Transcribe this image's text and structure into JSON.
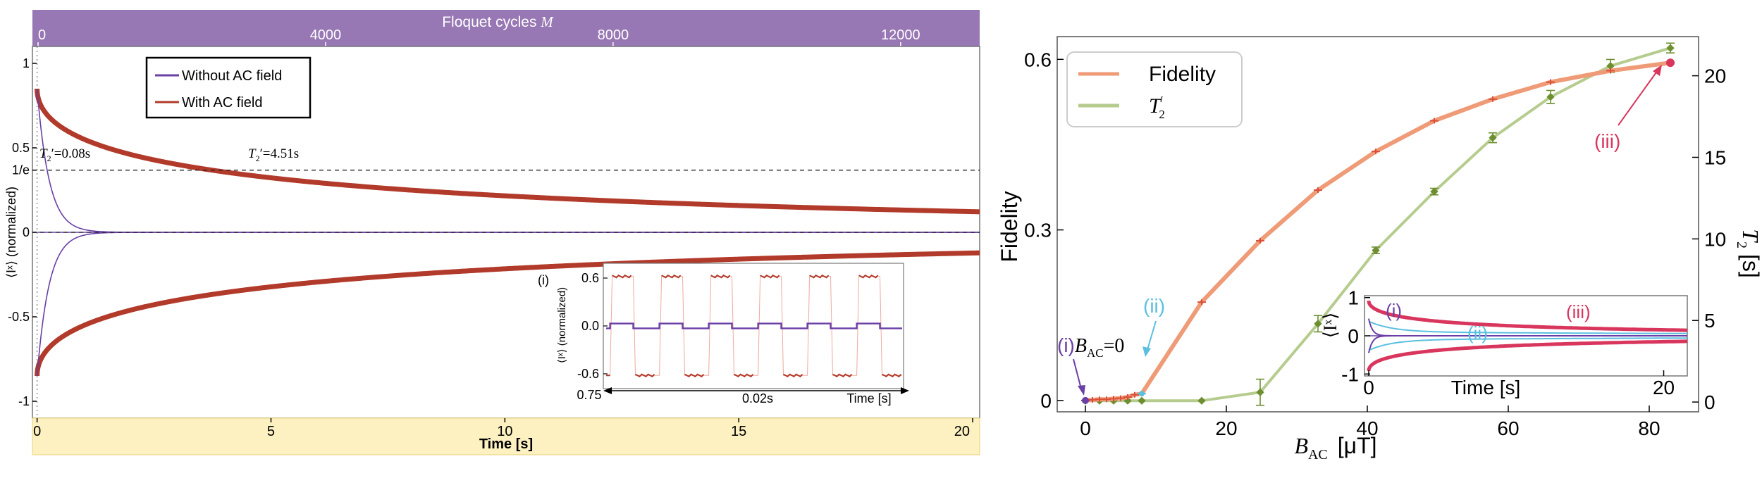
{
  "colors": {
    "purple": "#6a3fa6",
    "red": "#b23a2a",
    "fidelity": "#ef9b77",
    "t2": "#b6cc8e",
    "t2_marker": "#6d8f30",
    "iii": "#d9365e",
    "ii": "#5bbfe0",
    "i": "#6a3fa6",
    "top_band": "#9777b4",
    "bottom_band": "#fdf1c2"
  },
  "chart_data": [
    {
      "id": "left",
      "type": "line",
      "top_axis": {
        "label": "Floquet cycles ",
        "label_italic": "M",
        "ticks": [
          "0",
          "4000",
          "8000",
          "12000"
        ],
        "tick_values": [
          0,
          4000,
          8000,
          12000
        ],
        "range": [
          0,
          13100
        ]
      },
      "xlabel": "Time [s]",
      "xlim": [
        -0.1,
        20.15
      ],
      "xticks": [
        0,
        5,
        10,
        15,
        20
      ],
      "xtick_labels": [
        "0",
        "5",
        "10",
        "15",
        "20"
      ],
      "ylabel": "⟨Iˣ⟩ (normalized)",
      "ylim": [
        -1.1,
        1.1
      ],
      "yticks": [
        1,
        0.5,
        0.368,
        0,
        -0.5,
        -1
      ],
      "ytick_labels": [
        "1",
        "0.5",
        "1/e",
        "0",
        "-0.5",
        "-1"
      ],
      "legend": {
        "placement": "top-left",
        "entries": [
          "Without AC field",
          "With AC field"
        ]
      },
      "series": [
        {
          "name": "Without AC field",
          "T2_s": 0.08,
          "amplitude": 0.85
        },
        {
          "name": "With AC field",
          "T2_s": 4.51,
          "amplitude": 0.85
        }
      ],
      "annotations": [
        {
          "text_italic": "T",
          "text_sub": "2",
          "text_rest": "′=0.08s",
          "at_time": 0.08
        },
        {
          "text_italic": "T",
          "text_sub": "2",
          "text_rest": "′=4.51s",
          "at_time": 4.51
        }
      ],
      "inset": {
        "tag": "(i)",
        "ylabel": "⟨Iˣ⟩ (normalized)",
        "yticks": [
          "0.6",
          "0.0",
          "-0.6"
        ],
        "ytick_values": [
          0.6,
          0.0,
          -0.6
        ],
        "x_start": "0.75",
        "span": "0.02s",
        "xlabel": "Time [s]",
        "red_level": 0.62,
        "purple_level": 0.03,
        "periods": 6
      }
    },
    {
      "id": "right",
      "type": "line",
      "xlabel": "B",
      "xlabel_sub": "AC",
      "xlabel_unit": "[μT]",
      "xlim": [
        -4,
        87
      ],
      "xticks": [
        0,
        20,
        40,
        60,
        80
      ],
      "xtick_labels": [
        "0",
        "20",
        "40",
        "60",
        "80"
      ],
      "ylabel": "Fidelity",
      "ylim": [
        -0.02,
        0.64
      ],
      "yticks": [
        0,
        0.3,
        0.6
      ],
      "ytick_labels": [
        "0",
        "0.3",
        "0.6"
      ],
      "y2label": "T",
      "y2label_sub": "2",
      "y2label_unit": "[s]",
      "y2lim": [
        -0.6,
        22.4
      ],
      "y2ticks": [
        0,
        5,
        10,
        15,
        20
      ],
      "y2tick_labels": [
        "0",
        "5",
        "10",
        "15",
        "20"
      ],
      "legend": {
        "placement": "top-left",
        "entries": [
          "Fidelity",
          "T′₂"
        ]
      },
      "series": [
        {
          "name": "Fidelity",
          "axis": "left",
          "x": [
            0,
            1,
            2,
            3,
            4,
            5,
            6,
            7,
            8,
            16.5,
            24.8,
            33,
            41.2,
            49.5,
            57.8,
            66,
            74.5,
            83
          ],
          "y": [
            0,
            0.001,
            0.002,
            0.002,
            0.003,
            0.004,
            0.006,
            0.01,
            0.012,
            0.173,
            0.281,
            0.37,
            0.438,
            0.492,
            0.53,
            0.56,
            0.58,
            0.594
          ]
        },
        {
          "name": "T′₂",
          "axis": "right",
          "x": [
            0,
            2,
            4,
            6,
            8,
            16.5,
            24.8,
            33,
            41.2,
            49.5,
            57.8,
            66,
            74.5,
            83
          ],
          "y": [
            0.08,
            0.08,
            0.08,
            0.08,
            0.08,
            0.08,
            0.6,
            4.8,
            9.3,
            12.9,
            16.2,
            18.7,
            20.6,
            21.7
          ],
          "err": [
            0,
            0,
            0,
            0,
            0,
            0,
            0.8,
            0.5,
            0.2,
            0.2,
            0.3,
            0.4,
            0.4,
            0.3
          ]
        }
      ],
      "annotations": [
        {
          "tag": "(i)",
          "text": "B",
          "sub": "AC",
          "rest": "=0",
          "at_x": 0
        },
        {
          "tag": "(ii)",
          "at_x": 8
        },
        {
          "tag": "(iii)",
          "at_x": 83
        }
      ],
      "inset": {
        "yticks": [
          "1",
          "0",
          "-1"
        ],
        "ytick_values": [
          1,
          0,
          -1
        ],
        "xticks": [
          "0",
          "20"
        ],
        "xtick_values": [
          0,
          20
        ],
        "xlabel": "Time [s]",
        "ylabel": "⟨Iˣ⟩",
        "labels": [
          "(i)",
          "(ii)",
          "(iii)"
        ]
      }
    }
  ]
}
